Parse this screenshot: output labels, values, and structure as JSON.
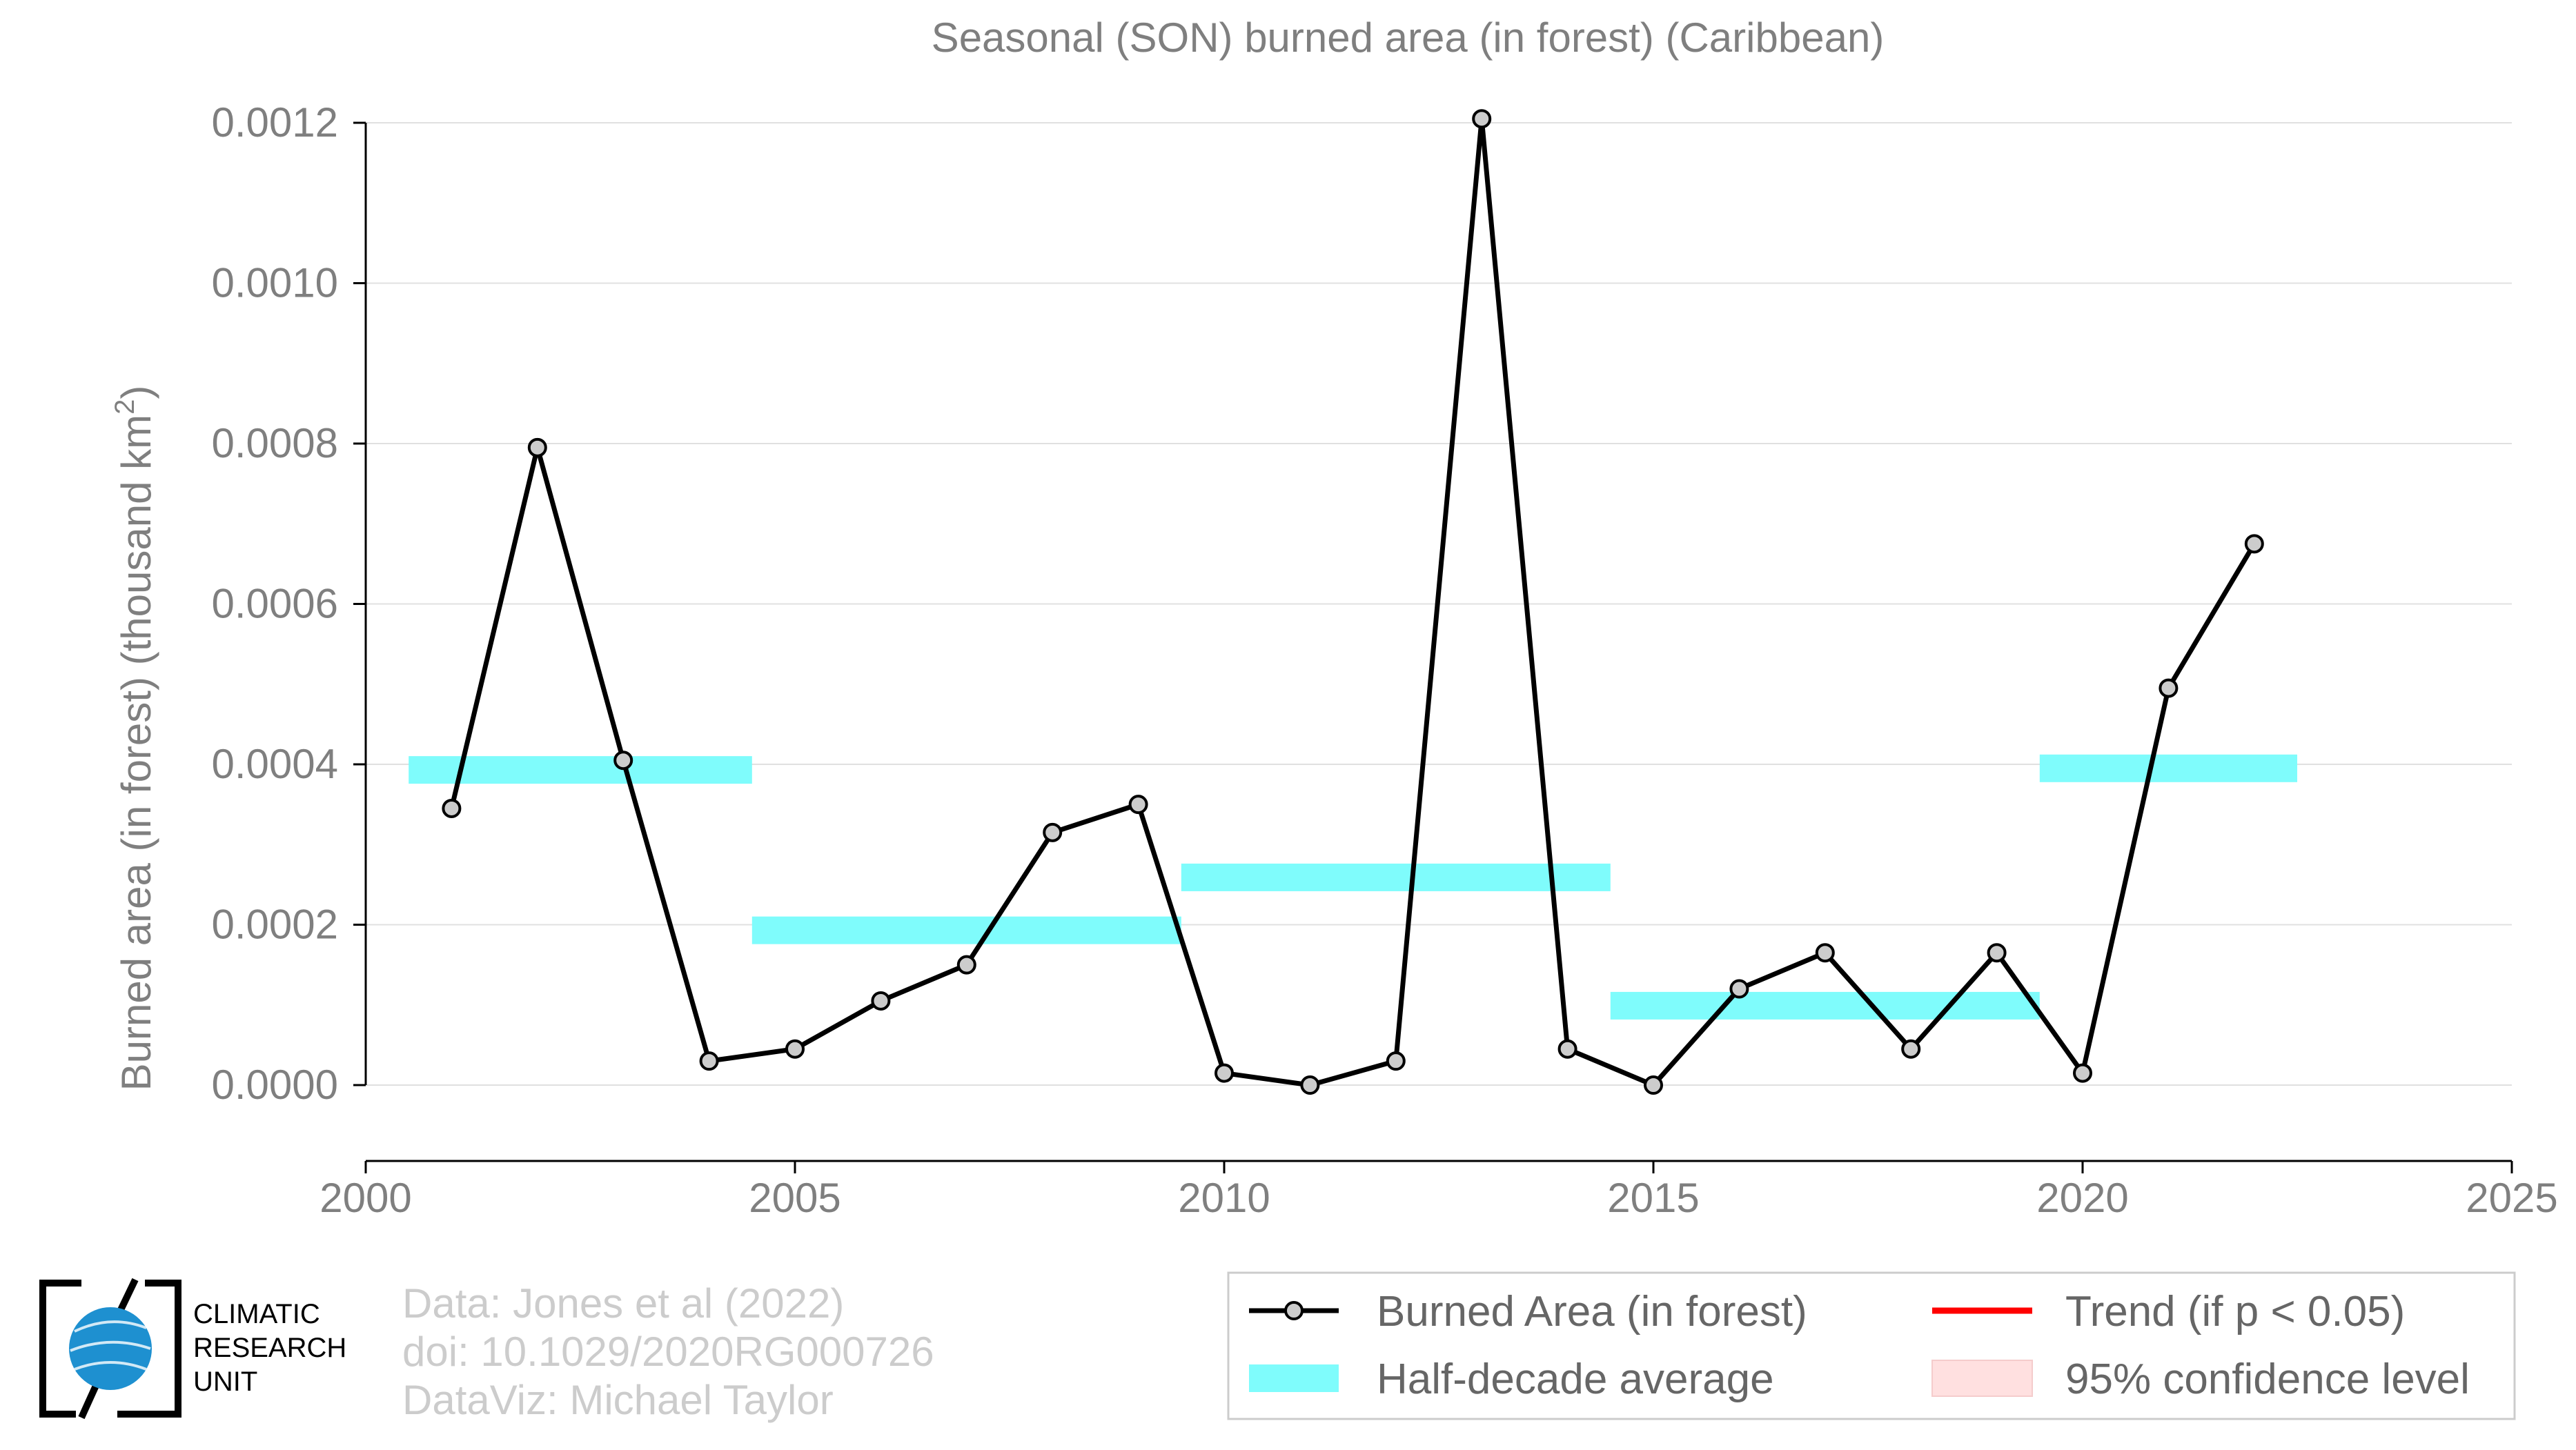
{
  "chart_data": {
    "type": "line",
    "title": "Seasonal (SON) burned area (in forest) (Caribbean)",
    "xlabel": "",
    "ylabel": "Burned area (in forest) (thousand km",
    "ylabel_superscript": "2",
    "ylabel_close": ")",
    "xlim": [
      2000,
      2025
    ],
    "ylim": [
      -0.0001,
      0.00122
    ],
    "xticks": [
      2000,
      2005,
      2010,
      2015,
      2020,
      2025
    ],
    "xtick_labels": [
      "2000",
      "2005",
      "2010",
      "2015",
      "2020",
      "2025"
    ],
    "yticks": [
      0.0,
      0.0002,
      0.0004,
      0.0006,
      0.0008,
      0.001,
      0.0012
    ],
    "ytick_labels": [
      "0.0000",
      "0.0002",
      "0.0004",
      "0.0006",
      "0.0008",
      "0.0010",
      "0.0012"
    ],
    "grid": true,
    "series": [
      {
        "name": "Burned Area (in forest)",
        "color": "#000000",
        "marker_fill": "#cccccc",
        "x": [
          2001,
          2002,
          2003,
          2004,
          2005,
          2006,
          2007,
          2008,
          2009,
          2010,
          2011,
          2012,
          2013,
          2014,
          2015,
          2016,
          2017,
          2018,
          2019,
          2020,
          2021,
          2022
        ],
        "y": [
          0.000345,
          0.000795,
          0.000405,
          3e-05,
          4.5e-05,
          0.000105,
          0.00015,
          0.000315,
          0.00035,
          1.5e-05,
          0.0,
          3e-05,
          0.001205,
          4.5e-05,
          0.0,
          0.00012,
          0.000165,
          4.5e-05,
          0.000165,
          1.5e-05,
          0.000495,
          0.000675
        ]
      }
    ],
    "half_decade_average": {
      "name": "Half-decade average",
      "color": "#7ffcfc",
      "segments": [
        {
          "x_start": 2000.5,
          "x_end": 2004.5,
          "y": 0.000393
        },
        {
          "x_start": 2004.5,
          "x_end": 2009.5,
          "y": 0.000193
        },
        {
          "x_start": 2009.5,
          "x_end": 2014.5,
          "y": 0.000259
        },
        {
          "x_start": 2014.5,
          "x_end": 2019.5,
          "y": 9.9e-05
        },
        {
          "x_start": 2019.5,
          "x_end": 2022.5,
          "y": 0.000395
        }
      ]
    },
    "legend": {
      "position": "bottom-right",
      "entries": [
        {
          "label": "Burned Area (in forest)",
          "kind": "line-marker",
          "color": "#000000"
        },
        {
          "label": "Trend (if p < 0.05)",
          "kind": "line",
          "color": "#ff0000"
        },
        {
          "label": "Half-decade average",
          "kind": "band",
          "color": "#7ffcfc"
        },
        {
          "label": "95% confidence level",
          "kind": "band",
          "color": "#ffe0e0"
        }
      ]
    }
  },
  "credits": {
    "line1": "Data: Jones et al (2022)",
    "line2": "doi: 10.1029/2020RG000726",
    "line3": "DataViz: Michael Taylor"
  },
  "logo": {
    "line1": "CLIMATIC",
    "line2": "RESEARCH",
    "line3": "UNIT",
    "globe_color": "#1e90d0"
  }
}
